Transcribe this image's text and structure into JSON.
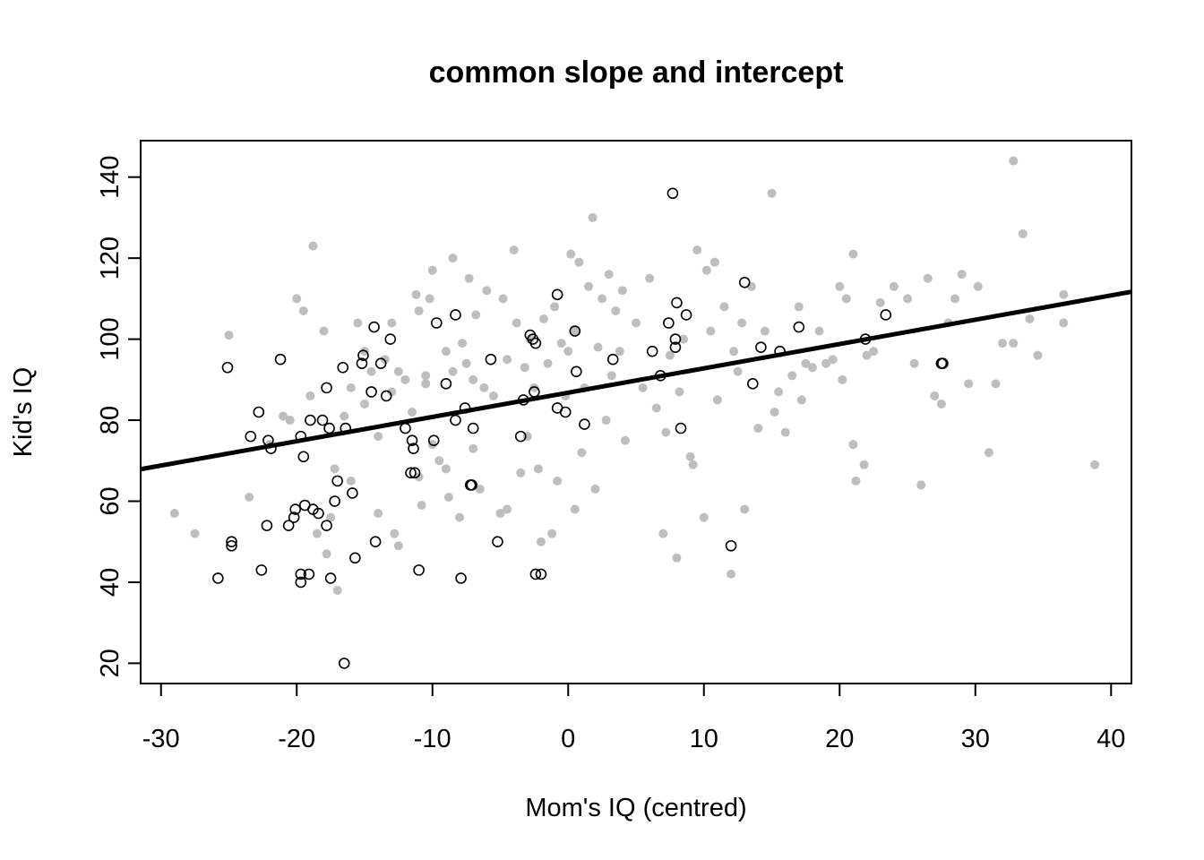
{
  "chart_data": {
    "type": "scatter",
    "title": "common slope and intercept",
    "xlabel": "Mom's IQ (centred)",
    "ylabel": "Kid's IQ",
    "xlim": [
      -31.5,
      41.5
    ],
    "ylim": [
      15,
      149
    ],
    "xticks": [
      -30,
      -20,
      -10,
      0,
      10,
      20,
      30,
      40
    ],
    "yticks": [
      20,
      40,
      60,
      80,
      100,
      120,
      140
    ],
    "grid": false,
    "legend": "none",
    "colors": {
      "background_points": "#bebebe",
      "highlighted_points": "#000000",
      "fit_line": "#000000",
      "frame": "#000000"
    },
    "fit_line": {
      "intercept": 86.8,
      "slope": 0.6
    },
    "series": [
      {
        "marker": "filled-circle",
        "color": "#bebebe",
        "points": [
          [
            -29,
            57
          ],
          [
            -27.5,
            52
          ],
          [
            -25,
            101
          ],
          [
            -23.5,
            61
          ],
          [
            -22,
            74
          ],
          [
            -21,
            81
          ],
          [
            -20.5,
            80
          ],
          [
            -20,
            110
          ],
          [
            -19.5,
            107
          ],
          [
            -19,
            86
          ],
          [
            -18.8,
            123
          ],
          [
            -18.5,
            52
          ],
          [
            -18,
            102
          ],
          [
            -17.8,
            47
          ],
          [
            -17.5,
            56
          ],
          [
            -17.2,
            68
          ],
          [
            -17,
            38
          ],
          [
            -16.5,
            81
          ],
          [
            -16,
            88
          ],
          [
            -16,
            65
          ],
          [
            -15.5,
            104
          ],
          [
            -15,
            97
          ],
          [
            -15,
            84
          ],
          [
            -14.5,
            92
          ],
          [
            -14,
            76
          ],
          [
            -14,
            57
          ],
          [
            -13.5,
            95
          ],
          [
            -13,
            104
          ],
          [
            -13,
            87
          ],
          [
            -12.8,
            52
          ],
          [
            -12.5,
            92
          ],
          [
            -12.5,
            49
          ],
          [
            -12,
            90
          ],
          [
            -11.5,
            82
          ],
          [
            -11.2,
            111
          ],
          [
            -11,
            107
          ],
          [
            -11,
            66
          ],
          [
            -10.8,
            59
          ],
          [
            -10.5,
            91
          ],
          [
            -10.5,
            89
          ],
          [
            -10.2,
            110
          ],
          [
            -10,
            117
          ],
          [
            -10,
            74
          ],
          [
            -9.5,
            70
          ],
          [
            -9,
            97
          ],
          [
            -9,
            68
          ],
          [
            -8.8,
            61
          ],
          [
            -8.5,
            120
          ],
          [
            -8.5,
            92
          ],
          [
            -8,
            56
          ],
          [
            -7.8,
            99
          ],
          [
            -7.5,
            94
          ],
          [
            -7.3,
            115
          ],
          [
            -7,
            90
          ],
          [
            -7,
            73
          ],
          [
            -6.8,
            106
          ],
          [
            -6.5,
            63
          ],
          [
            -6.2,
            88
          ],
          [
            -6,
            112
          ],
          [
            -5.5,
            86
          ],
          [
            -5,
            57
          ],
          [
            -4.8,
            110
          ],
          [
            -4.5,
            95
          ],
          [
            -4.5,
            58
          ],
          [
            -4,
            122
          ],
          [
            -3.8,
            104
          ],
          [
            -3.5,
            67
          ],
          [
            -3.2,
            93
          ],
          [
            -3,
            76
          ],
          [
            -2.8,
            100
          ],
          [
            -2.5,
            88
          ],
          [
            -2.2,
            68
          ],
          [
            -2,
            50
          ],
          [
            -1.8,
            105
          ],
          [
            -1.5,
            94
          ],
          [
            -1.2,
            52
          ],
          [
            -1,
            108
          ],
          [
            -0.8,
            65
          ],
          [
            -0.5,
            99
          ],
          [
            -0.2,
            86
          ],
          [
            0,
            97
          ],
          [
            0.2,
            121
          ],
          [
            0.5,
            58
          ],
          [
            0.5,
            102
          ],
          [
            0.8,
            119
          ],
          [
            1,
            72
          ],
          [
            1.2,
            88
          ],
          [
            1.5,
            113
          ],
          [
            1.8,
            130
          ],
          [
            2,
            63
          ],
          [
            2.2,
            98
          ],
          [
            2.5,
            110
          ],
          [
            2.8,
            80
          ],
          [
            3,
            116
          ],
          [
            3.2,
            91
          ],
          [
            3.5,
            107
          ],
          [
            3.8,
            97
          ],
          [
            4,
            112
          ],
          [
            4.2,
            75
          ],
          [
            5,
            104
          ],
          [
            5.5,
            88
          ],
          [
            6,
            115
          ],
          [
            6.5,
            83
          ],
          [
            7,
            52
          ],
          [
            7.2,
            77
          ],
          [
            7.5,
            96
          ],
          [
            8,
            46
          ],
          [
            8.2,
            87
          ],
          [
            8.5,
            100
          ],
          [
            9,
            71
          ],
          [
            9.2,
            69
          ],
          [
            9.5,
            122
          ],
          [
            10,
            56
          ],
          [
            10.2,
            117
          ],
          [
            10.5,
            102
          ],
          [
            10.8,
            119
          ],
          [
            11,
            85
          ],
          [
            11.5,
            108
          ],
          [
            12,
            42
          ],
          [
            12.2,
            97
          ],
          [
            12.5,
            92
          ],
          [
            12.8,
            104
          ],
          [
            13,
            58
          ],
          [
            13.5,
            113
          ],
          [
            14,
            78
          ],
          [
            14.5,
            102
          ],
          [
            15,
            136
          ],
          [
            15.2,
            82
          ],
          [
            15.5,
            87
          ],
          [
            16,
            77
          ],
          [
            16.5,
            91
          ],
          [
            17,
            108
          ],
          [
            17.2,
            85
          ],
          [
            17.5,
            94
          ],
          [
            18,
            93
          ],
          [
            18.5,
            102
          ],
          [
            19,
            94
          ],
          [
            19.5,
            95
          ],
          [
            20,
            113
          ],
          [
            20.2,
            90
          ],
          [
            20.5,
            110
          ],
          [
            21,
            121
          ],
          [
            21,
            74
          ],
          [
            21.2,
            65
          ],
          [
            21.8,
            69
          ],
          [
            22,
            96
          ],
          [
            22.5,
            97
          ],
          [
            23,
            109
          ],
          [
            24,
            113
          ],
          [
            25,
            110
          ],
          [
            25.5,
            94
          ],
          [
            26,
            64
          ],
          [
            26.5,
            115
          ],
          [
            27,
            86
          ],
          [
            27.5,
            84
          ],
          [
            28,
            104
          ],
          [
            28.5,
            110
          ],
          [
            29,
            116
          ],
          [
            29.5,
            89
          ],
          [
            30.2,
            113
          ],
          [
            31,
            72
          ],
          [
            31.5,
            89
          ],
          [
            32,
            99
          ],
          [
            32.8,
            99
          ],
          [
            32.8,
            144
          ],
          [
            33.5,
            126
          ],
          [
            34,
            105
          ],
          [
            34.6,
            96
          ],
          [
            36.5,
            111
          ],
          [
            36.5,
            104
          ],
          [
            38.8,
            69
          ]
        ]
      },
      {
        "marker": "open-circle",
        "color": "#000000",
        "points": [
          [
            -25.8,
            41
          ],
          [
            -25.1,
            93
          ],
          [
            -24.8,
            50
          ],
          [
            -24.8,
            49
          ],
          [
            -23.4,
            76
          ],
          [
            -22.8,
            82
          ],
          [
            -22.6,
            43
          ],
          [
            -22.2,
            54
          ],
          [
            -22.1,
            75
          ],
          [
            -21.9,
            73
          ],
          [
            -21.2,
            95
          ],
          [
            -20.6,
            54
          ],
          [
            -20.2,
            56
          ],
          [
            -20.1,
            58
          ],
          [
            -19.7,
            76
          ],
          [
            -19.7,
            40
          ],
          [
            -19.7,
            42
          ],
          [
            -19.5,
            71
          ],
          [
            -19.4,
            59
          ],
          [
            -19.1,
            42
          ],
          [
            -19,
            80
          ],
          [
            -18.8,
            58
          ],
          [
            -18.4,
            57
          ],
          [
            -18.1,
            80
          ],
          [
            -17.8,
            54
          ],
          [
            -17.8,
            88
          ],
          [
            -17.6,
            78
          ],
          [
            -17.5,
            41
          ],
          [
            -17.2,
            60
          ],
          [
            -17,
            65
          ],
          [
            -16.6,
            93
          ],
          [
            -16.5,
            20
          ],
          [
            -16.4,
            78
          ],
          [
            -15.9,
            62
          ],
          [
            -15.7,
            46
          ],
          [
            -15.2,
            94
          ],
          [
            -15.1,
            96
          ],
          [
            -14.5,
            87
          ],
          [
            -14.3,
            103
          ],
          [
            -14.2,
            50
          ],
          [
            -13.8,
            94
          ],
          [
            -13.4,
            86
          ],
          [
            -13.1,
            100
          ],
          [
            -12,
            78
          ],
          [
            -11.6,
            67
          ],
          [
            -11.5,
            75
          ],
          [
            -11.4,
            73
          ],
          [
            -11.3,
            67
          ],
          [
            -11,
            43
          ],
          [
            -9.9,
            75
          ],
          [
            -9.7,
            104
          ],
          [
            -9,
            89
          ],
          [
            -8.3,
            106
          ],
          [
            -8.3,
            80
          ],
          [
            -7.9,
            41
          ],
          [
            -7.6,
            83
          ],
          [
            -7.2,
            64
          ],
          [
            -7.1,
            64
          ],
          [
            -7,
            78
          ],
          [
            -5.7,
            95
          ],
          [
            -5.2,
            50
          ],
          [
            -3.5,
            76
          ],
          [
            -3.3,
            85
          ],
          [
            -2.8,
            101
          ],
          [
            -2.6,
            100
          ],
          [
            -2.5,
            87
          ],
          [
            -2.4,
            99
          ],
          [
            -2.4,
            42
          ],
          [
            -2,
            42
          ],
          [
            -0.8,
            83
          ],
          [
            -0.8,
            111
          ],
          [
            -0.2,
            82
          ],
          [
            0.5,
            102
          ],
          [
            0.6,
            92
          ],
          [
            1.2,
            79
          ],
          [
            3.3,
            95
          ],
          [
            6.2,
            97
          ],
          [
            6.8,
            91
          ],
          [
            7.4,
            104
          ],
          [
            7.7,
            136
          ],
          [
            7.9,
            98
          ],
          [
            7.9,
            100
          ],
          [
            8,
            109
          ],
          [
            8.3,
            78
          ],
          [
            8.7,
            106
          ],
          [
            12,
            49
          ],
          [
            13,
            114
          ],
          [
            13.6,
            89
          ],
          [
            14.2,
            98
          ],
          [
            15.6,
            97
          ],
          [
            17,
            103
          ],
          [
            21.9,
            100
          ],
          [
            23.4,
            106
          ],
          [
            27.5,
            94
          ],
          [
            27.6,
            94
          ]
        ]
      }
    ]
  }
}
